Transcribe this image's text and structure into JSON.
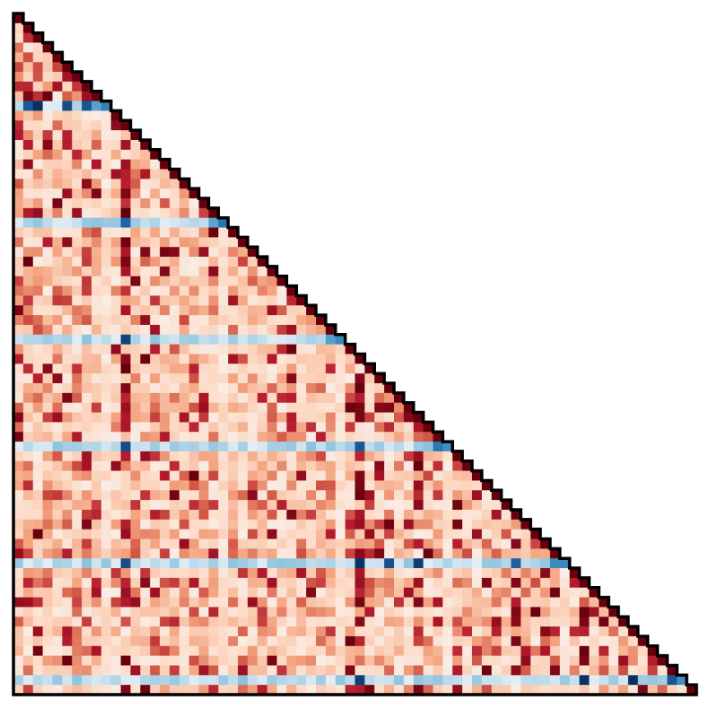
{
  "chart_data": {
    "type": "heatmap",
    "shape": "lower-triangular",
    "n": 70,
    "title": "",
    "xlabel": "",
    "ylabel": "",
    "colormap": "RdBu_r",
    "value_range": [
      -1,
      1
    ],
    "grid": false,
    "legend": "none",
    "negative_rows": [
      9,
      21,
      33,
      44,
      56,
      68
    ],
    "negative_row_strong_cols": {
      "9": [
        1,
        2,
        5,
        7
      ],
      "21": [
        11
      ],
      "33": [
        11
      ],
      "44": [
        11,
        35
      ],
      "56": [
        11,
        35,
        38,
        41,
        51
      ],
      "68": [
        35,
        58,
        63,
        67
      ]
    },
    "strong_positive_columns": [
      11,
      35,
      41,
      51,
      58
    ],
    "colors": {
      "outline": "#000000",
      "background": "#ffffff",
      "deep_red": "#67000d",
      "mid_red": "#d6604d",
      "light_red": "#fddbc7",
      "neutral": "#f7f7f7",
      "light_blue": "#d1e5f0",
      "mid_blue": "#4393c3",
      "deep_blue": "#053061"
    }
  }
}
